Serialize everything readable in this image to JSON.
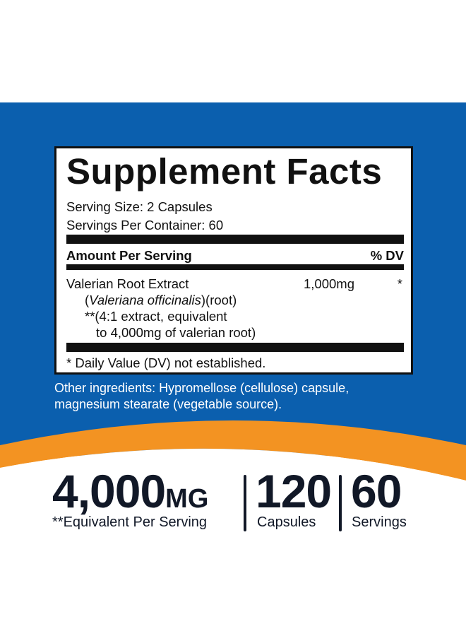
{
  "colors": {
    "blue": "#0b5fae",
    "orange": "#f39322",
    "text": "#111827"
  },
  "facts": {
    "title": "Supplement Facts",
    "serving_size": "Serving Size: 2 Capsules",
    "servings_per_container": "Servings Per Container: 60",
    "amount_header": "Amount Per Serving",
    "dv_header": "% DV",
    "ingredient": {
      "name": "Valerian Root Extract",
      "latin_open": "(",
      "latin": "Valeriana officinalis",
      "latin_close": ")(root)",
      "note1": "**(4:1 extract, equivalent",
      "note2": "to 4,000mg of valerian root)",
      "amount": "1,000mg",
      "dv": "*"
    },
    "footnote": "* Daily Value (DV) not established."
  },
  "other_ingredients": {
    "line1": "Other ingredients: Hypromellose (cellulose) capsule,",
    "line2": "magnesium stearate (vegetable source)."
  },
  "highlights": [
    {
      "value": "4,000",
      "unit": "MG",
      "label": "**Equivalent Per Serving"
    },
    {
      "value": "120",
      "label": "Capsules"
    },
    {
      "value": "60",
      "label": "Servings"
    }
  ]
}
